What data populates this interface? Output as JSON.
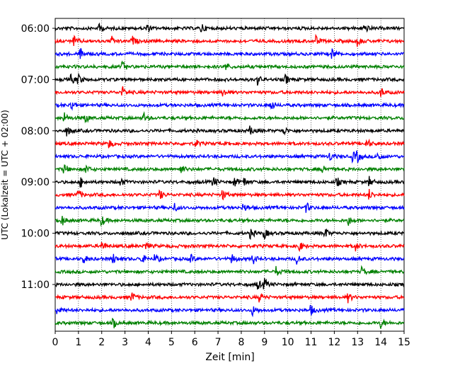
{
  "chart_data": {
    "type": "line",
    "title": "",
    "xlabel": "Zeit  [min]",
    "ylabel": "UTC (Lokalzeit = UTC + 02:00)",
    "xlim": [
      0,
      15
    ],
    "x_ticks": [
      "0",
      "1",
      "2",
      "3",
      "4",
      "5",
      "6",
      "7",
      "8",
      "9",
      "10",
      "11",
      "12",
      "13",
      "14",
      "15"
    ],
    "y_ticks": [
      {
        "label": "06:00",
        "row": 0
      },
      {
        "label": "07:00",
        "row": 4
      },
      {
        "label": "08:00",
        "row": 8
      },
      {
        "label": "09:00",
        "row": 12
      },
      {
        "label": "10:00",
        "row": 16
      },
      {
        "label": "11:00",
        "row": 20
      }
    ],
    "grid": "vertical dotted lines at each minute",
    "trace_colors": [
      "#000000",
      "#ff0000",
      "#0000ff",
      "#008000"
    ],
    "rows": 24,
    "row_interval_minutes": 15,
    "events": [
      {
        "row": 0,
        "minutes": [
          1.9,
          3.9,
          6.3,
          13.3
        ]
      },
      {
        "row": 1,
        "minutes": [
          0.8,
          2.4,
          3.3,
          11.2,
          13.0
        ]
      },
      {
        "row": 2,
        "minutes": [
          1.1,
          11.9
        ]
      },
      {
        "row": 3,
        "minutes": [
          2.9,
          7.3
        ]
      },
      {
        "row": 4,
        "minutes": [
          0.7,
          1.0,
          8.7,
          9.9
        ]
      },
      {
        "row": 5,
        "minutes": [
          2.9,
          7.2,
          14.0
        ]
      },
      {
        "row": 6,
        "minutes": [
          0.7,
          9.3
        ]
      },
      {
        "row": 7,
        "minutes": [
          0.4,
          1.3,
          3.8
        ]
      },
      {
        "row": 8,
        "minutes": [
          0.5,
          8.4,
          9.8
        ]
      },
      {
        "row": 9,
        "minutes": [
          2.3,
          6.0,
          13.4
        ]
      },
      {
        "row": 10,
        "minutes": [
          11.8,
          12.8,
          13.0,
          13.9
        ]
      },
      {
        "row": 11,
        "minutes": [
          0.4,
          1.3,
          5.4,
          11.5
        ]
      },
      {
        "row": 12,
        "minutes": [
          1.1,
          2.8,
          6.8,
          7.7,
          8.1,
          12.1,
          13.5
        ]
      },
      {
        "row": 13,
        "minutes": [
          1.0,
          4.5,
          7.2,
          13.5
        ]
      },
      {
        "row": 14,
        "minutes": [
          5.1,
          8.1,
          10.8
        ]
      },
      {
        "row": 15,
        "minutes": [
          0.3,
          2.0,
          12.6
        ]
      },
      {
        "row": 16,
        "minutes": [
          8.4,
          9.0,
          11.6
        ]
      },
      {
        "row": 17,
        "minutes": [
          2.0,
          3.9,
          10.5,
          12.9
        ]
      },
      {
        "row": 18,
        "minutes": [
          1.2,
          2.5,
          3.7,
          4.3,
          5.8,
          7.6,
          8.5,
          10.4
        ]
      },
      {
        "row": 19,
        "minutes": [
          9.5,
          13.2
        ]
      },
      {
        "row": 20,
        "minutes": [
          8.7,
          9.0
        ]
      },
      {
        "row": 21,
        "minutes": [
          3.3,
          8.8,
          12.6
        ]
      },
      {
        "row": 22,
        "minutes": [
          0.1,
          8.5,
          11.0
        ]
      },
      {
        "row": 23,
        "minutes": [
          2.5,
          14.0
        ]
      }
    ]
  }
}
